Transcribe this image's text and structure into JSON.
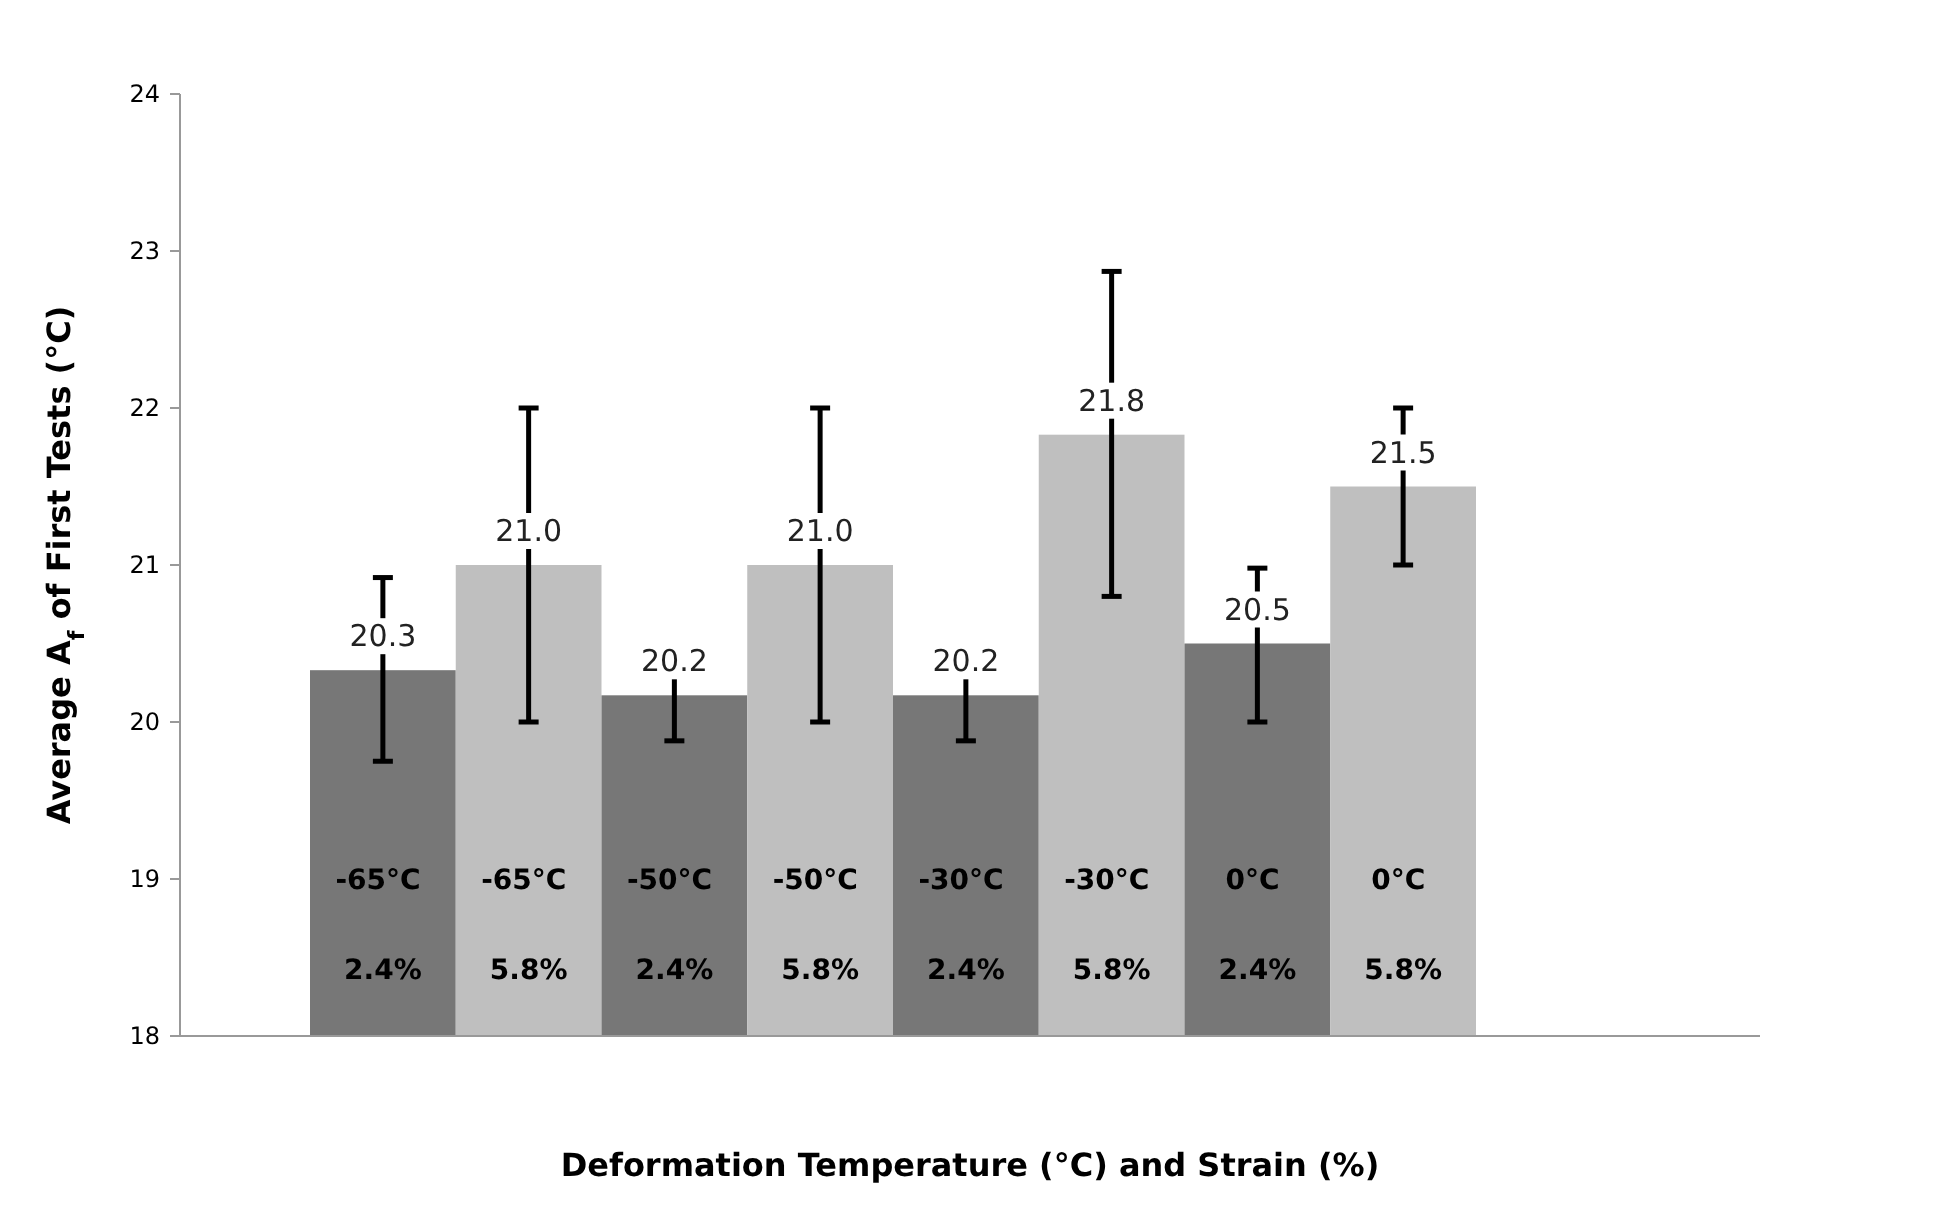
{
  "chart_data": {
    "type": "bar",
    "ylabel": "Average A$_{f}$ of First Tests (°C)",
    "xlabel": "Deformation Temperature (°C) and Strain (%)",
    "categories": [
      "-65°C 2.4%",
      "-65°C 5.8%",
      "-50°C 2.4%",
      "-50°C 5.8%",
      "-30°C 2.4%",
      "-30°C 5.8%",
      "0°C 2.4%",
      "0°C 5.8%"
    ],
    "values": [
      20.33,
      21.0,
      20.17,
      21.0,
      20.17,
      21.83,
      20.5,
      21.5
    ],
    "colors": [
      "#777777",
      "#bfbfbf",
      "#777777",
      "#bfbfbf",
      "#777777",
      "#bfbfbf",
      "#777777",
      "#bfbfbf"
    ],
    "value_labels": [
      "20.3",
      "21.0",
      "20.2",
      "21.0",
      "20.2",
      "21.8",
      "20.5",
      "21.5"
    ],
    "errors": [
      [
        19.75,
        20.92
      ],
      [
        20.0,
        22.0
      ],
      [
        19.88,
        20.45
      ],
      [
        20.0,
        22.0
      ],
      [
        19.88,
        20.45
      ],
      [
        20.8,
        22.87
      ],
      [
        20.0,
        20.98
      ],
      [
        21.0,
        22.0
      ]
    ],
    "ylim": [
      18,
      24
    ],
    "yticks": [
      18,
      19,
      20,
      21,
      22,
      23,
      24
    ],
    "grid": false
  }
}
